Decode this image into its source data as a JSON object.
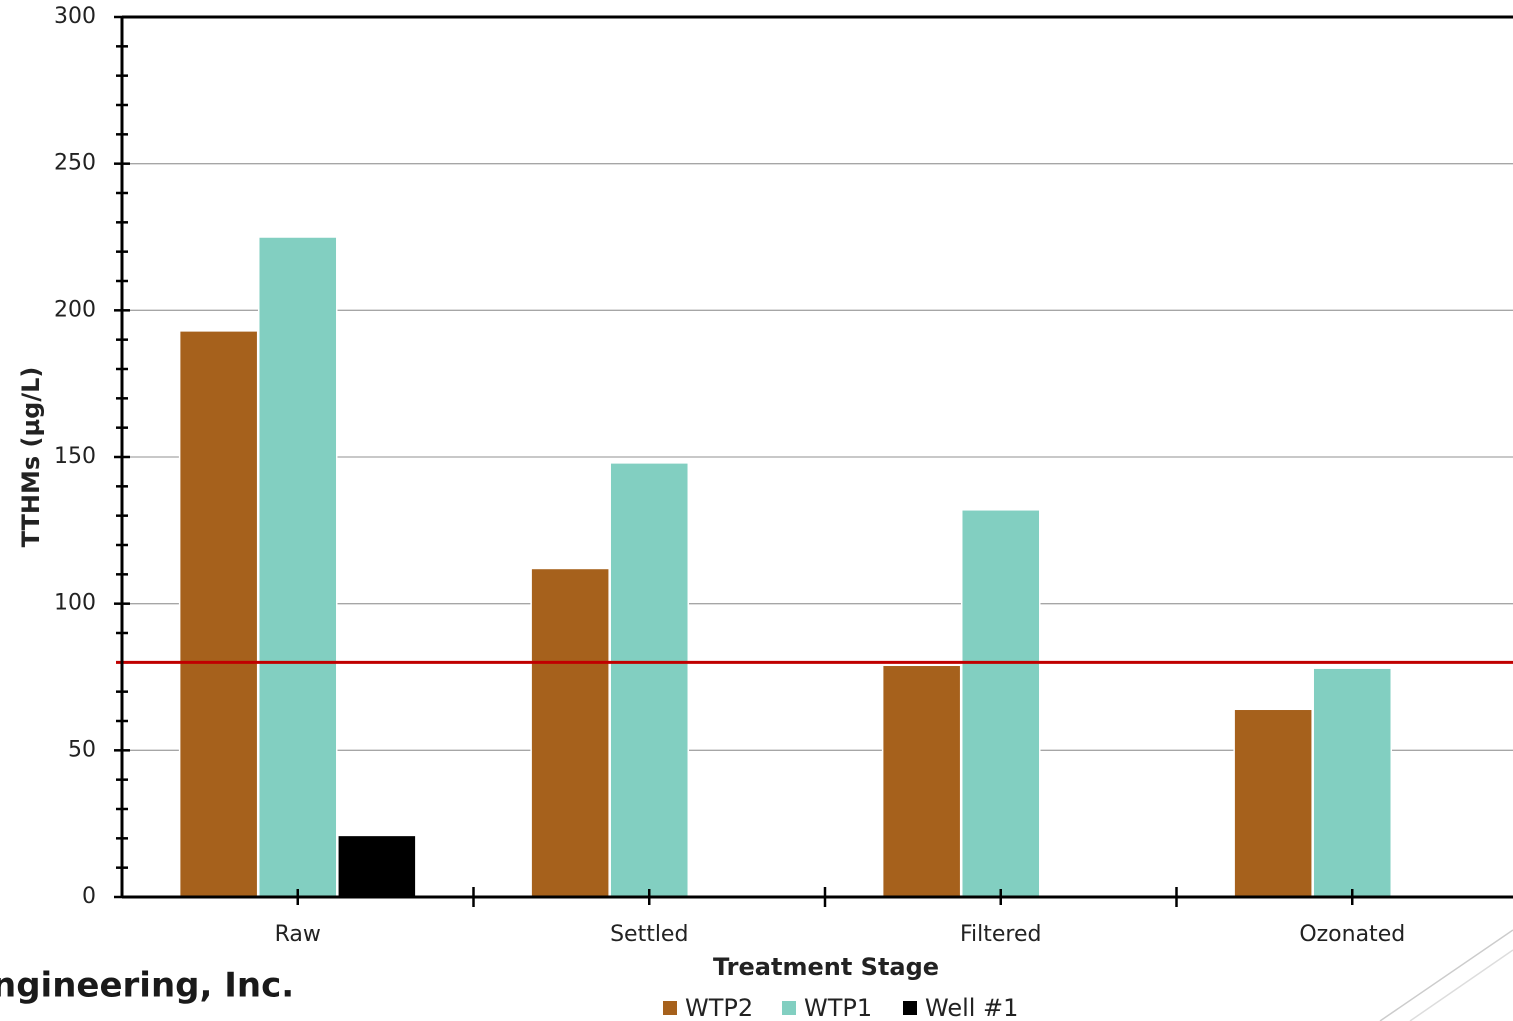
{
  "chart_data": {
    "type": "bar",
    "x_label": "Treatment Stage",
    "y_label": "TTHMs (µg/L)",
    "categories": [
      "Raw",
      "Settled",
      "Filtered",
      "Ozonated"
    ],
    "series": [
      {
        "name": "WTP2",
        "color": "#a6611c",
        "values": [
          193,
          112,
          79,
          64
        ]
      },
      {
        "name": "WTP1",
        "color": "#82cfc1",
        "values": [
          225,
          148,
          132,
          78
        ]
      },
      {
        "name": "Well #1",
        "color": "#000000",
        "values": [
          21,
          null,
          null,
          null
        ]
      }
    ],
    "ylim": [
      0,
      300
    ],
    "yticks": [
      0,
      50,
      100,
      150,
      200,
      250,
      300
    ],
    "yminorticks": [
      10,
      20,
      30,
      40,
      60,
      70,
      80,
      90,
      110,
      120,
      130,
      140,
      160,
      170,
      180,
      190,
      210,
      220,
      230,
      240,
      260,
      270,
      280,
      290
    ],
    "grid": true,
    "reference_line": {
      "value": 80,
      "color": "#c00000"
    },
    "legend": "bottom",
    "logo": "ngineering, Inc."
  }
}
